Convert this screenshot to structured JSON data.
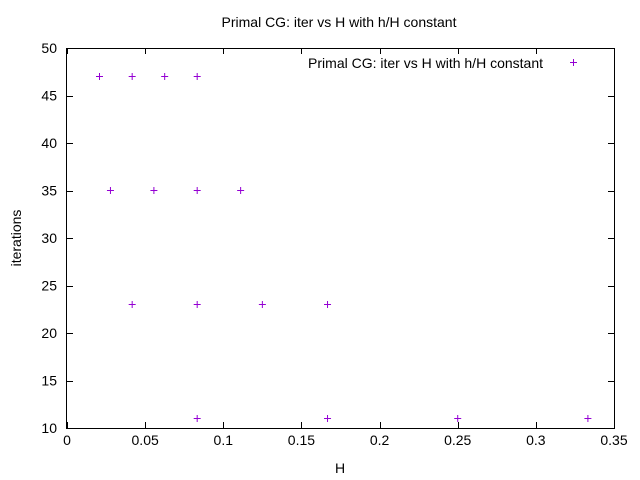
{
  "chart_data": {
    "type": "scatter",
    "title": "Primal CG: iter vs H with h/H constant",
    "xlabel": "H",
    "ylabel": "iterations",
    "xlim": [
      0,
      0.35
    ],
    "ylim": [
      10,
      50
    ],
    "x_ticks": [
      "0",
      "0.05",
      "0.1",
      "0.15",
      "0.2",
      "0.25",
      "0.3",
      "0.35"
    ],
    "y_ticks": [
      "10",
      "15",
      "20",
      "25",
      "30",
      "35",
      "40",
      "45",
      "50"
    ],
    "grid": false,
    "legend_position": "top-right",
    "series": [
      {
        "name": "Primal CG: iter vs H with h/H constant",
        "color": "#9400d3",
        "marker": "plus",
        "points": [
          {
            "x": 0.0208,
            "y": 47
          },
          {
            "x": 0.0417,
            "y": 47
          },
          {
            "x": 0.0625,
            "y": 47
          },
          {
            "x": 0.0833,
            "y": 47
          },
          {
            "x": 0.0278,
            "y": 35
          },
          {
            "x": 0.0556,
            "y": 35
          },
          {
            "x": 0.0833,
            "y": 35
          },
          {
            "x": 0.1111,
            "y": 35
          },
          {
            "x": 0.0417,
            "y": 23
          },
          {
            "x": 0.0833,
            "y": 23
          },
          {
            "x": 0.125,
            "y": 23
          },
          {
            "x": 0.1667,
            "y": 23
          },
          {
            "x": 0.0833,
            "y": 11
          },
          {
            "x": 0.1667,
            "y": 11
          },
          {
            "x": 0.25,
            "y": 11
          },
          {
            "x": 0.3333,
            "y": 11
          }
        ]
      }
    ]
  }
}
